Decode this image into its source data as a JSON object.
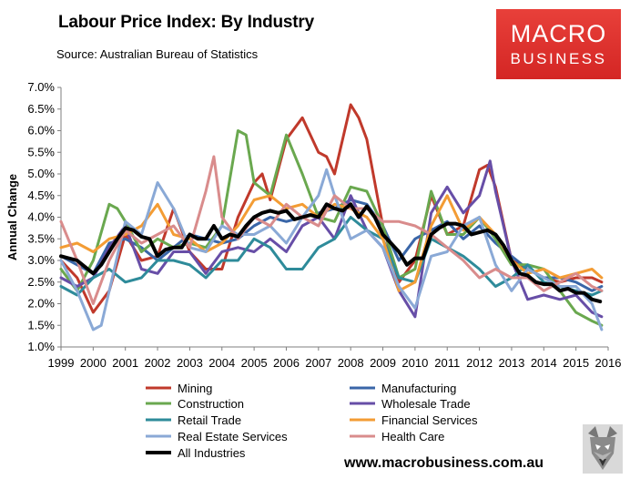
{
  "header": {
    "title": "Labour Price Index: By Industry",
    "source": "Source: Australian Bureau of Statistics"
  },
  "logo": {
    "line1": "MACRO",
    "line2": "BUSINESS"
  },
  "footer": {
    "url": "www.macrobusiness.com.au"
  },
  "chart_data": {
    "type": "line",
    "title": "Labour Price Index: By Industry",
    "xlabel": "",
    "ylabel": "Annual Change",
    "xlim": [
      1999,
      2016
    ],
    "ylim": [
      1.0,
      7.0
    ],
    "x_ticks": [
      1999,
      2000,
      2001,
      2002,
      2003,
      2004,
      2005,
      2006,
      2007,
      2008,
      2009,
      2010,
      2011,
      2012,
      2013,
      2014,
      2015,
      2016
    ],
    "y_ticks": [
      "1.0%",
      "1.5%",
      "2.0%",
      "2.5%",
      "3.0%",
      "3.5%",
      "4.0%",
      "4.5%",
      "5.0%",
      "5.5%",
      "6.0%",
      "6.5%",
      "7.0%"
    ],
    "grid": false,
    "legend_position": "bottom",
    "series": [
      {
        "name": "Mining",
        "color": "#c0392b",
        "x": [
          1999.0,
          1999.5,
          2000.0,
          2000.5,
          2001.0,
          2001.5,
          2002.0,
          2002.5,
          2003.0,
          2003.5,
          2004.0,
          2004.5,
          2005.0,
          2005.25,
          2005.5,
          2006.0,
          2006.5,
          2007.0,
          2007.25,
          2007.5,
          2008.0,
          2008.25,
          2008.5,
          2009.0,
          2009.5,
          2010.0,
          2010.5,
          2011.0,
          2011.5,
          2012.0,
          2012.25,
          2012.5,
          2013.0,
          2013.5,
          2014.0,
          2014.5,
          2015.0,
          2015.5,
          2015.8
        ],
        "values": [
          3.0,
          2.6,
          1.8,
          2.3,
          3.6,
          3.0,
          3.1,
          4.2,
          3.2,
          2.8,
          2.8,
          4.0,
          4.8,
          5.0,
          4.4,
          5.8,
          6.3,
          5.5,
          5.4,
          5.0,
          6.6,
          6.3,
          5.8,
          3.8,
          2.5,
          3.0,
          4.5,
          3.6,
          3.8,
          5.1,
          5.2,
          4.7,
          3.0,
          2.8,
          2.6,
          2.5,
          2.6,
          2.6,
          2.5
        ]
      },
      {
        "name": "Manufacturing",
        "color": "#3a66a8",
        "x": [
          1999.0,
          1999.5,
          2000.0,
          2000.5,
          2001.0,
          2001.5,
          2002.0,
          2002.5,
          2003.0,
          2003.5,
          2004.0,
          2004.5,
          2005.0,
          2005.5,
          2006.0,
          2006.5,
          2007.0,
          2007.5,
          2008.0,
          2008.5,
          2009.0,
          2009.5,
          2010.0,
          2010.5,
          2011.0,
          2011.5,
          2012.0,
          2012.5,
          2013.0,
          2013.5,
          2014.0,
          2014.5,
          2015.0,
          2015.5,
          2015.8
        ],
        "values": [
          3.1,
          2.9,
          2.7,
          3.4,
          3.5,
          3.3,
          3.0,
          3.3,
          3.6,
          3.5,
          3.4,
          3.5,
          3.8,
          4.0,
          3.9,
          4.0,
          4.1,
          4.2,
          4.4,
          4.3,
          3.8,
          3.0,
          3.5,
          3.7,
          3.9,
          3.5,
          3.8,
          3.4,
          3.1,
          2.8,
          2.6,
          2.6,
          2.5,
          2.3,
          2.4
        ]
      },
      {
        "name": "Construction",
        "color": "#6aa84f",
        "x": [
          1999.0,
          1999.5,
          2000.0,
          2000.5,
          2000.75,
          2001.0,
          2001.5,
          2002.0,
          2002.5,
          2003.0,
          2003.5,
          2004.0,
          2004.5,
          2004.75,
          2005.0,
          2005.5,
          2006.0,
          2006.5,
          2007.0,
          2007.5,
          2008.0,
          2008.5,
          2009.0,
          2009.5,
          2010.0,
          2010.5,
          2011.0,
          2011.5,
          2012.0,
          2012.5,
          2013.0,
          2013.5,
          2014.0,
          2014.5,
          2015.0,
          2015.5,
          2015.8
        ],
        "values": [
          2.8,
          2.3,
          3.0,
          4.3,
          4.2,
          3.9,
          3.2,
          3.5,
          3.3,
          3.4,
          3.3,
          3.8,
          6.0,
          5.9,
          4.8,
          4.5,
          5.9,
          5.0,
          4.0,
          3.9,
          4.7,
          4.6,
          3.8,
          2.6,
          2.8,
          4.6,
          3.6,
          3.6,
          4.0,
          3.5,
          2.9,
          2.9,
          2.8,
          2.3,
          1.8,
          1.6,
          1.5
        ]
      },
      {
        "name": "Wholesale Trade",
        "color": "#674ea7",
        "x": [
          1999.0,
          1999.5,
          2000.0,
          2000.5,
          2001.0,
          2001.5,
          2002.0,
          2002.5,
          2003.0,
          2003.5,
          2004.0,
          2004.5,
          2005.0,
          2005.5,
          2006.0,
          2006.5,
          2007.0,
          2007.5,
          2008.0,
          2008.5,
          2009.0,
          2009.5,
          2010.0,
          2010.5,
          2011.0,
          2011.5,
          2012.0,
          2012.33,
          2012.5,
          2013.0,
          2013.5,
          2014.0,
          2014.5,
          2015.0,
          2015.5,
          2015.8
        ],
        "values": [
          2.6,
          2.4,
          2.6,
          3.3,
          3.8,
          2.8,
          2.7,
          3.2,
          3.2,
          2.7,
          3.2,
          3.3,
          3.2,
          3.5,
          3.2,
          3.8,
          4.0,
          3.5,
          4.5,
          3.7,
          3.3,
          2.3,
          1.7,
          4.1,
          4.7,
          4.1,
          4.5,
          5.3,
          4.6,
          3.0,
          2.1,
          2.2,
          2.1,
          2.2,
          1.8,
          1.7
        ]
      },
      {
        "name": "Retail Trade",
        "color": "#2e8b9a",
        "x": [
          1999.0,
          1999.5,
          2000.0,
          2000.5,
          2001.0,
          2001.5,
          2002.0,
          2002.5,
          2003.0,
          2003.5,
          2004.0,
          2004.5,
          2005.0,
          2005.5,
          2006.0,
          2006.5,
          2007.0,
          2007.5,
          2008.0,
          2008.5,
          2009.0,
          2009.5,
          2010.0,
          2010.5,
          2011.0,
          2011.5,
          2012.0,
          2012.5,
          2013.0,
          2013.5,
          2014.0,
          2014.5,
          2015.0,
          2015.5,
          2015.8
        ],
        "values": [
          2.4,
          2.2,
          2.6,
          2.8,
          2.5,
          2.6,
          3.0,
          3.0,
          2.9,
          2.6,
          3.0,
          3.0,
          3.5,
          3.3,
          2.8,
          2.8,
          3.3,
          3.5,
          4.0,
          3.7,
          3.5,
          2.6,
          2.5,
          3.5,
          3.3,
          3.1,
          2.8,
          2.4,
          2.6,
          2.9,
          2.5,
          2.4,
          2.3,
          2.2,
          2.3
        ]
      },
      {
        "name": "Financial Services",
        "color": "#f39c34",
        "x": [
          1999.0,
          1999.5,
          2000.0,
          2000.5,
          2001.0,
          2001.5,
          2002.0,
          2002.5,
          2003.0,
          2003.5,
          2004.0,
          2004.5,
          2005.0,
          2005.5,
          2006.0,
          2006.5,
          2007.0,
          2007.5,
          2008.0,
          2008.5,
          2009.0,
          2009.5,
          2010.0,
          2010.5,
          2011.0,
          2011.5,
          2012.0,
          2012.5,
          2013.0,
          2013.5,
          2014.0,
          2014.5,
          2015.0,
          2015.5,
          2015.8
        ],
        "values": [
          3.3,
          3.4,
          3.2,
          3.5,
          3.6,
          3.8,
          4.3,
          3.6,
          3.5,
          3.2,
          3.4,
          3.8,
          4.4,
          4.5,
          4.2,
          4.3,
          4.0,
          4.3,
          4.2,
          4.0,
          3.5,
          2.3,
          2.5,
          3.8,
          4.5,
          3.7,
          4.0,
          3.6,
          3.0,
          2.7,
          2.8,
          2.6,
          2.7,
          2.8,
          2.6
        ]
      },
      {
        "name": "Real Estate Services",
        "color": "#8aa9d6",
        "x": [
          1999.0,
          1999.5,
          2000.0,
          2000.25,
          2000.5,
          2001.0,
          2001.5,
          2002.0,
          2002.5,
          2003.0,
          2003.5,
          2004.0,
          2004.5,
          2005.0,
          2005.5,
          2006.0,
          2006.5,
          2007.0,
          2007.25,
          2007.5,
          2008.0,
          2008.5,
          2009.0,
          2009.5,
          2010.0,
          2010.5,
          2011.0,
          2011.5,
          2012.0,
          2012.5,
          2013.0,
          2013.5,
          2014.0,
          2014.5,
          2015.0,
          2015.5,
          2015.8
        ],
        "values": [
          3.0,
          2.3,
          1.4,
          1.5,
          2.3,
          3.9,
          3.6,
          4.8,
          4.2,
          3.3,
          3.2,
          3.8,
          3.6,
          3.6,
          3.8,
          3.4,
          4.0,
          4.5,
          5.1,
          4.5,
          3.5,
          3.7,
          3.3,
          2.4,
          1.9,
          3.1,
          3.2,
          3.8,
          4.0,
          2.9,
          2.3,
          2.8,
          2.6,
          2.4,
          2.4,
          2.0,
          1.4
        ]
      },
      {
        "name": "Health Care",
        "color": "#d98c8c",
        "x": [
          1999.0,
          1999.5,
          2000.0,
          2000.5,
          2001.0,
          2001.5,
          2002.0,
          2002.5,
          2003.0,
          2003.5,
          2003.75,
          2004.0,
          2004.5,
          2005.0,
          2005.5,
          2006.0,
          2006.5,
          2007.0,
          2007.5,
          2008.0,
          2008.5,
          2009.0,
          2009.5,
          2010.0,
          2010.5,
          2011.0,
          2011.5,
          2012.0,
          2012.5,
          2013.0,
          2013.5,
          2014.0,
          2014.5,
          2015.0,
          2015.5,
          2015.8
        ],
        "values": [
          3.9,
          3.0,
          2.0,
          3.0,
          3.7,
          3.4,
          3.6,
          3.8,
          3.3,
          4.6,
          5.4,
          4.0,
          3.5,
          4.0,
          3.8,
          4.3,
          4.0,
          3.8,
          4.5,
          4.2,
          4.2,
          3.9,
          3.9,
          3.8,
          3.6,
          3.3,
          3.0,
          2.6,
          2.8,
          2.6,
          2.6,
          2.3,
          2.5,
          2.7,
          2.4,
          2.3
        ]
      },
      {
        "name": "All Industries",
        "color": "#000000",
        "x": [
          1999.0,
          1999.5,
          2000.0,
          2000.25,
          2000.5,
          2000.75,
          2001.0,
          2001.25,
          2001.5,
          2001.75,
          2002.0,
          2002.25,
          2002.5,
          2002.75,
          2003.0,
          2003.25,
          2003.5,
          2003.75,
          2004.0,
          2004.25,
          2004.5,
          2004.75,
          2005.0,
          2005.25,
          2005.5,
          2005.75,
          2006.0,
          2006.25,
          2006.5,
          2006.75,
          2007.0,
          2007.25,
          2007.5,
          2007.75,
          2008.0,
          2008.25,
          2008.5,
          2008.75,
          2009.0,
          2009.25,
          2009.5,
          2009.75,
          2010.0,
          2010.25,
          2010.5,
          2010.75,
          2011.0,
          2011.25,
          2011.5,
          2011.75,
          2012.0,
          2012.25,
          2012.5,
          2012.75,
          2013.0,
          2013.25,
          2013.5,
          2013.75,
          2014.0,
          2014.25,
          2014.5,
          2014.75,
          2015.0,
          2015.25,
          2015.5,
          2015.75
        ],
        "values": [
          3.1,
          3.0,
          2.7,
          2.9,
          3.2,
          3.5,
          3.75,
          3.7,
          3.55,
          3.5,
          3.1,
          3.25,
          3.3,
          3.3,
          3.6,
          3.5,
          3.5,
          3.8,
          3.5,
          3.6,
          3.55,
          3.8,
          4.0,
          4.1,
          4.15,
          4.1,
          4.15,
          3.95,
          4.0,
          4.05,
          4.0,
          4.3,
          4.2,
          4.15,
          4.3,
          4.0,
          4.25,
          4.0,
          3.6,
          3.4,
          3.2,
          2.9,
          3.05,
          3.05,
          3.6,
          3.75,
          3.85,
          3.85,
          3.8,
          3.6,
          3.65,
          3.7,
          3.6,
          3.35,
          3.0,
          2.7,
          2.65,
          2.5,
          2.45,
          2.45,
          2.3,
          2.35,
          2.25,
          2.25,
          2.1,
          2.05
        ]
      }
    ]
  }
}
